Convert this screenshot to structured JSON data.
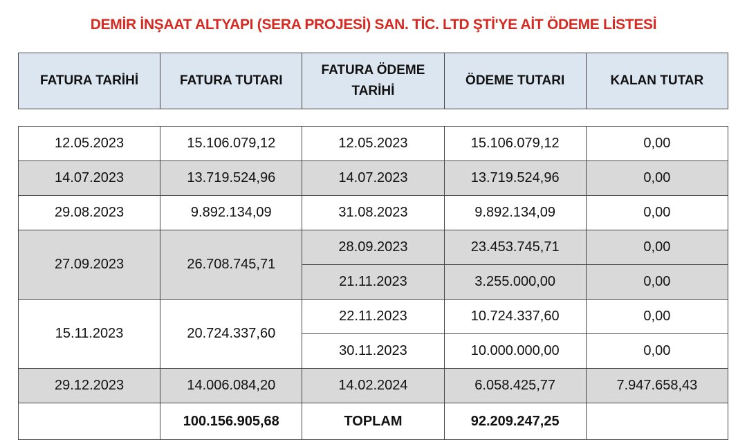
{
  "title": "DEMİR İNŞAAT ALTYAPI  (SERA PROJESİ) SAN. TİC. LTD ŞTİ'YE AİT ÖDEME LİSTESİ",
  "headers": [
    "FATURA TARİHİ",
    "FATURA TUTARI",
    "FATURA ÖDEME TARİHİ",
    "ÖDEME TUTARI",
    "KALAN TUTAR"
  ],
  "header_fatura_odeme_line1": "FATURA ÖDEME",
  "header_fatura_odeme_line2": "TARİHİ",
  "rows": [
    {
      "fatura_tarihi": "12.05.2023",
      "fatura_tutari": "15.106.079,12",
      "payments": [
        {
          "tarih": "12.05.2023",
          "tutar": "15.106.079,12",
          "kalan": "0,00"
        }
      ]
    },
    {
      "fatura_tarihi": "14.07.2023",
      "fatura_tutari": "13.719.524,96",
      "payments": [
        {
          "tarih": "14.07.2023",
          "tutar": "13.719.524,96",
          "kalan": "0,00"
        }
      ]
    },
    {
      "fatura_tarihi": "29.08.2023",
      "fatura_tutari": "9.892.134,09",
      "payments": [
        {
          "tarih": "31.08.2023",
          "tutar": "9.892.134,09",
          "kalan": "0,00"
        }
      ]
    },
    {
      "fatura_tarihi": "27.09.2023",
      "fatura_tutari": "26.708.745,71",
      "payments": [
        {
          "tarih": "28.09.2023",
          "tutar": "23.453.745,71",
          "kalan": "0,00"
        },
        {
          "tarih": "21.11.2023",
          "tutar": "3.255.000,00",
          "kalan": "0,00"
        }
      ]
    },
    {
      "fatura_tarihi": "15.11.2023",
      "fatura_tutari": "20.724.337,60",
      "payments": [
        {
          "tarih": "22.11.2023",
          "tutar": "10.724.337,60",
          "kalan": "0,00"
        },
        {
          "tarih": "30.11.2023",
          "tutar": "10.000.000,00",
          "kalan": "0,00"
        }
      ]
    },
    {
      "fatura_tarihi": "29.12.2023",
      "fatura_tutari": "14.006.084,20",
      "payments": [
        {
          "tarih": "14.02.2024",
          "tutar": "6.058.425,77",
          "kalan": "7.947.658,43"
        }
      ]
    }
  ],
  "totals": {
    "fatura_tutari": "100.156.905,68",
    "label": "TOPLAM",
    "odeme_tutari": "92.209.247,25"
  },
  "colors": {
    "title": "#d42a22",
    "header_bg": "#dce6f1",
    "shaded_row": "#d9d9d9"
  }
}
